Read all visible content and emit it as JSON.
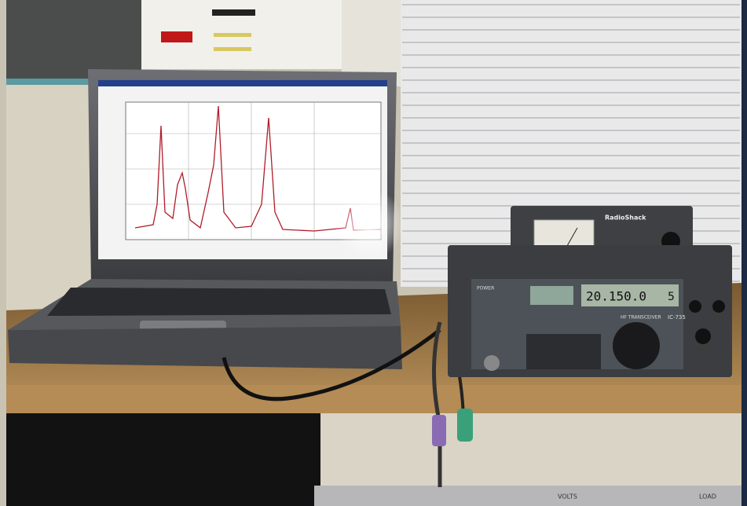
{
  "scene": {
    "meter": {
      "brand": "RadioShack"
    },
    "transceiver": {
      "frequency": "20.150.0",
      "mode_digit": "5",
      "model": "IC-735",
      "description": "HF TRANSCEIVER",
      "power_label": "POWER"
    },
    "shelf_unit": {
      "left_label": "VOLTS",
      "right_label": "LOAD"
    }
  }
}
